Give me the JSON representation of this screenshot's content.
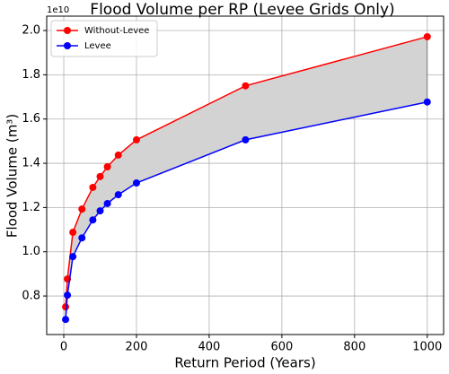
{
  "chart_data": {
    "type": "line",
    "title": "Flood Volume per RP (Levee Grids Only)",
    "x_label": "Return Period (Years)",
    "y_label": "Flood Volume (m³)",
    "y_offset_label": "1e10",
    "x": [
      5,
      10,
      25,
      50,
      80,
      100,
      120,
      150,
      200,
      500,
      1000
    ],
    "series": [
      {
        "name": "Without-Levee",
        "color": "#ff0000",
        "values": [
          0.751,
          0.877,
          1.088,
          1.193,
          1.291,
          1.34,
          1.384,
          1.437,
          1.506,
          1.75,
          1.972
        ]
      },
      {
        "name": "Levee",
        "color": "#0000ff",
        "values": [
          0.694,
          0.804,
          0.978,
          1.063,
          1.144,
          1.185,
          1.218,
          1.258,
          1.311,
          1.506,
          1.677
        ]
      }
    ],
    "fill_between_color": "#d3d3d3",
    "xlim": [
      -47,
      1045
    ],
    "ylim": [
      0.626,
      2.065
    ],
    "xticks": [
      0,
      200,
      400,
      600,
      800,
      1000
    ],
    "yticks": [
      0.8,
      {
        "value": 1,
        "label": "1.0"
      },
      1.2,
      1.4,
      1.6,
      1.8,
      {
        "value": 2,
        "label": "2.0"
      }
    ],
    "grid": true,
    "legend": "upper-left"
  }
}
